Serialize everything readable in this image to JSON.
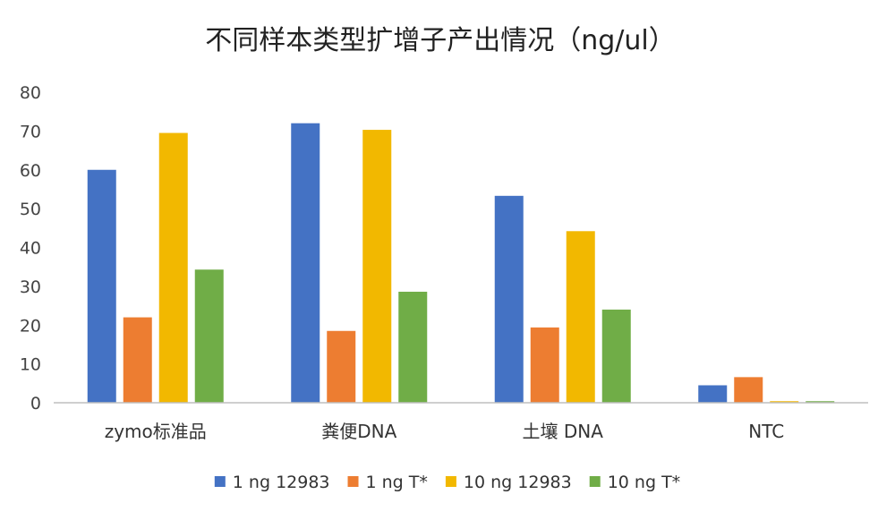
{
  "chart_data": {
    "type": "bar",
    "title": "不同样本类型扩增子产出情况（ng/ul）",
    "xlabel": "",
    "ylabel": "",
    "ylim": [
      0,
      80
    ],
    "yticks": [
      "0",
      "10",
      "20",
      "30",
      "40",
      "50",
      "60",
      "70",
      "80"
    ],
    "grid": false,
    "legend_position": "bottom",
    "categories": [
      "zymo标准品",
      "粪便DNA",
      "土壤 DNA",
      "NTC"
    ],
    "series": [
      {
        "name": "1 ng 12983",
        "color": "#4472C4",
        "values": [
          60,
          72,
          53.3,
          4.5
        ]
      },
      {
        "name": "1 ng T*",
        "color": "#ED7D31",
        "values": [
          22,
          18.5,
          19.4,
          6.6
        ]
      },
      {
        "name": "10 ng 12983",
        "color": "#F2B800",
        "values": [
          69.5,
          70.3,
          44.2,
          0.4
        ]
      },
      {
        "name": "10 ng T*",
        "color": "#70AD47",
        "values": [
          34.3,
          28.6,
          24,
          0.4
        ]
      }
    ]
  }
}
